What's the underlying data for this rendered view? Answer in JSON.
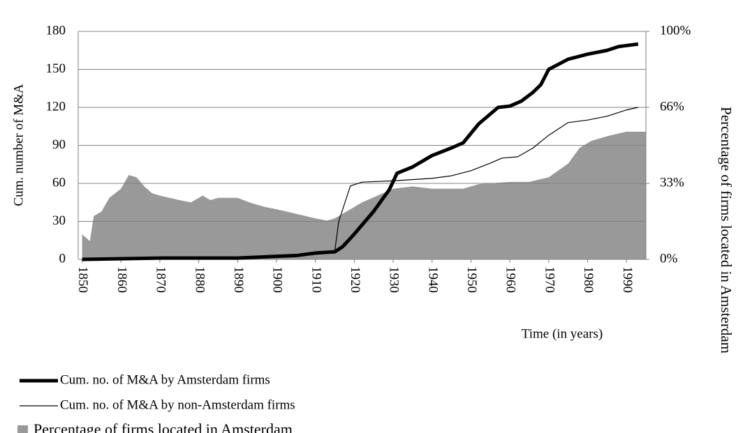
{
  "chart_data": {
    "type": "line",
    "xlabel": "Time (in years)",
    "ylabel": "Cum. number of M&A",
    "y2label": "Percentage of firms located in Amsterdam",
    "xlim": [
      1849,
      1995
    ],
    "xticks": [
      1850,
      1860,
      1870,
      1880,
      1890,
      1900,
      1910,
      1920,
      1930,
      1940,
      1950,
      1960,
      1970,
      1980,
      1990
    ],
    "ylim": [
      0,
      180
    ],
    "yticks": [
      0,
      30,
      60,
      90,
      120,
      150,
      180
    ],
    "y2lim": [
      0,
      100
    ],
    "y2ticks": [
      {
        "value": 0,
        "label": "0%"
      },
      {
        "value": 33.3,
        "label": "33%"
      },
      {
        "value": 66.7,
        "label": "66%"
      },
      {
        "value": 100,
        "label": "100%"
      }
    ],
    "grid": true,
    "legend": "bottom-left",
    "series": [
      {
        "name": "Cum. no. of M&A by Amsterdam firms",
        "color": "#000000",
        "width": 5,
        "x": [
          1850,
          1870,
          1890,
          1897,
          1905,
          1910,
          1915,
          1917,
          1920,
          1925,
          1929,
          1931,
          1935,
          1940,
          1945,
          1948,
          1952,
          1957,
          1960,
          1963,
          1966,
          1968,
          1970,
          1975,
          1980,
          1985,
          1988,
          1993
        ],
        "values": [
          0,
          1,
          1,
          2,
          3,
          5,
          6,
          10,
          20,
          38,
          55,
          68,
          73,
          82,
          88,
          92,
          107,
          120,
          121,
          125,
          132,
          138,
          150,
          158,
          162,
          165,
          168,
          170
        ]
      },
      {
        "name": "Cum. no. of M&A by non-Amsterdam firms",
        "color": "#000000",
        "width": 1.2,
        "x": [
          1850,
          1900,
          1910,
          1915,
          1916,
          1919,
          1922,
          1930,
          1940,
          1945,
          1950,
          1955,
          1958,
          1962,
          1966,
          1970,
          1975,
          1980,
          1985,
          1990,
          1993
        ],
        "values": [
          0,
          2,
          4,
          7,
          30,
          58,
          61,
          62,
          64,
          66,
          70,
          76,
          80,
          81,
          88,
          98,
          108,
          110,
          113,
          118,
          120
        ]
      },
      {
        "name": "Percentage of firms located in Amsterdam",
        "color": "#999999",
        "type": "area",
        "axis": "y2",
        "x": [
          1850,
          1852,
          1853,
          1855,
          1857,
          1860,
          1862,
          1864,
          1866,
          1868,
          1870,
          1875,
          1878,
          1881,
          1883,
          1885,
          1890,
          1893,
          1897,
          1900,
          1905,
          1910,
          1913,
          1915,
          1918,
          1922,
          1926,
          1930,
          1935,
          1940,
          1945,
          1948,
          1952,
          1960,
          1965,
          1970,
          1975,
          1978,
          1981,
          1985,
          1990,
          1995
        ],
        "values": [
          11,
          8,
          19,
          21,
          27,
          31,
          37,
          36,
          32,
          29,
          28,
          26,
          25,
          28,
          26,
          27,
          27,
          25,
          23,
          22,
          20,
          18,
          17,
          18,
          21,
          25,
          28,
          31,
          32,
          31,
          31,
          31,
          33,
          34,
          34,
          36,
          42,
          49,
          52,
          54,
          56,
          56
        ]
      }
    ]
  }
}
